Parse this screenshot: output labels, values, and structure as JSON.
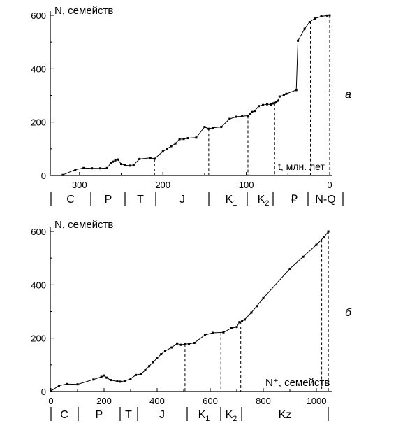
{
  "chart_data": [
    {
      "type": "line",
      "panel_label": "а",
      "ylabel": "N, семейств",
      "xlabel": "t, млн. лет",
      "x_reversed": true,
      "xlim": [
        335,
        0
      ],
      "ylim": [
        0,
        600
      ],
      "x_ticks": [
        300,
        200,
        100,
        0
      ],
      "y_ticks": [
        0,
        200,
        400,
        600
      ],
      "x_tick_labels": [
        "300",
        "200",
        "100",
        "0"
      ],
      "y_tick_labels": [
        "0",
        "200",
        "400",
        "600"
      ],
      "period_labels": [
        "C",
        "P",
        "T",
        "J",
        "K1",
        "K2",
        "₽",
        "N-Q"
      ],
      "series": [
        {
          "x": [
            320,
            305,
            295,
            285,
            275,
            267,
            262,
            260,
            257,
            254,
            250,
            245,
            240,
            235,
            228,
            215,
            210,
            200,
            195,
            190,
            185,
            180,
            175,
            170,
            160,
            150,
            145,
            140,
            130,
            120,
            112,
            105,
            98,
            95,
            93,
            90,
            85,
            80,
            75,
            70,
            68,
            66,
            64,
            62,
            60,
            55,
            52,
            40,
            38,
            30,
            24,
            18,
            10,
            3,
            0
          ],
          "y": [
            2,
            22,
            28,
            27,
            27,
            28,
            48,
            52,
            57,
            60,
            43,
            38,
            37,
            40,
            62,
            66,
            63,
            90,
            100,
            110,
            120,
            136,
            137,
            140,
            142,
            182,
            175,
            179,
            182,
            212,
            220,
            222,
            224,
            232,
            238,
            242,
            260,
            264,
            267,
            266,
            270,
            272,
            276,
            280,
            296,
            300,
            306,
            320,
            505,
            550,
            575,
            588,
            596,
            599,
            600
          ]
        }
      ],
      "dashed_boundaries_x": [
        210,
        145,
        98,
        66,
        23,
        0
      ]
    },
    {
      "type": "line",
      "panel_label": "б",
      "ylabel": "N, семейств",
      "xlabel": "N⁺, семейств",
      "xlim": [
        0,
        1050
      ],
      "ylim": [
        0,
        600
      ],
      "x_ticks": [
        0,
        200,
        400,
        600,
        800,
        1000
      ],
      "y_ticks": [
        0,
        200,
        400,
        600
      ],
      "x_tick_labels": [
        "0",
        "200",
        "400",
        "600",
        "800",
        "1000"
      ],
      "y_tick_labels": [
        "0",
        "200",
        "400",
        "600"
      ],
      "period_labels": [
        "C",
        "P",
        "T",
        "J",
        "K1",
        "K2",
        "Kz"
      ],
      "series": [
        {
          "x": [
            0,
            30,
            60,
            100,
            160,
            190,
            200,
            210,
            225,
            250,
            260,
            280,
            300,
            320,
            340,
            355,
            370,
            385,
            400,
            415,
            430,
            455,
            475,
            490,
            505,
            520,
            540,
            580,
            610,
            650,
            680,
            700,
            710,
            720,
            730,
            755,
            775,
            800,
            900,
            950,
            1000,
            1030,
            1045
          ],
          "y": [
            2,
            22,
            28,
            27,
            45,
            55,
            60,
            52,
            43,
            38,
            37,
            40,
            48,
            62,
            66,
            80,
            95,
            110,
            125,
            140,
            152,
            165,
            180,
            175,
            178,
            179,
            182,
            212,
            220,
            222,
            238,
            242,
            260,
            264,
            270,
            296,
            320,
            350,
            460,
            505,
            550,
            580,
            600
          ]
        }
      ],
      "dashed_boundaries_x": [
        505,
        640,
        715,
        1020,
        1045
      ]
    }
  ]
}
